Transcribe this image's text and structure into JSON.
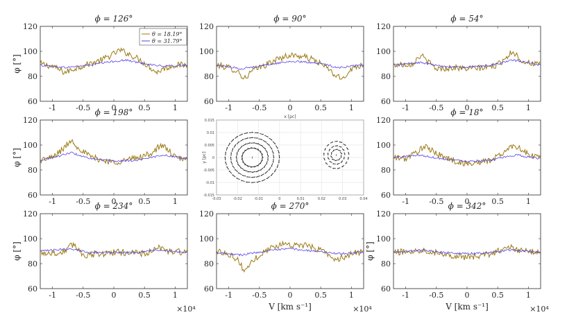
{
  "figure": {
    "xlabel": "V [km s⁻¹]",
    "ylabel": "φ [°]",
    "xscale_label": "×10⁴",
    "legend": [
      "θ = 18.19°",
      "θ = 31.79°"
    ],
    "colors": {
      "theta1": "#9a7a12",
      "theta2": "#5540e8"
    },
    "xticks": [
      "-1",
      "-0.5",
      "0",
      "0.5",
      "1"
    ],
    "yticks": [
      "60",
      "80",
      "100",
      "120"
    ]
  },
  "inset": {
    "xlabel": "x [pc]",
    "ylabel": "y [pc]",
    "xticks": [
      "-0.03",
      "-0.02",
      "-0.01",
      "0",
      "0.01",
      "0.02",
      "0.03",
      "0.04"
    ],
    "yticks": [
      "0.015",
      "0.01",
      "0.005",
      "0",
      "-0.005",
      "-0.01",
      "-0.015"
    ],
    "xlim": [
      -0.03,
      0.04
    ],
    "ylim": [
      -0.015,
      0.015
    ],
    "vortices": [
      {
        "cx": -0.013,
        "cy": 0.0,
        "rx": 0.0135,
        "ry": 0.0105
      },
      {
        "cx": 0.027,
        "cy": 0.001,
        "rx": 0.0065,
        "ry": 0.006
      }
    ]
  },
  "chart_data": [
    {
      "type": "line",
      "title": "ϕ = 126°",
      "xlim": [
        -12000,
        12000
      ],
      "ylim": [
        60,
        120
      ],
      "xlabel": "",
      "ylabel": "φ [°]",
      "series": [
        {
          "name": "θ = 18.19°",
          "knots_x": [
            -12000,
            -10000,
            -8000,
            -6000,
            -4000,
            -2000,
            0,
            1000,
            2000,
            4000,
            6000,
            7000,
            8000,
            10000,
            12000
          ],
          "knots_y": [
            90,
            88,
            83,
            87,
            90,
            93,
            98,
            101,
            99,
            94,
            87,
            83,
            86,
            89,
            89
          ],
          "noise": 2.5
        },
        {
          "name": "θ = 31.79°",
          "knots_x": [
            -12000,
            -8000,
            -4000,
            0,
            2000,
            4000,
            8000,
            12000
          ],
          "knots_y": [
            89,
            87,
            89,
            92,
            93,
            91,
            88,
            89
          ],
          "noise": 0.8
        }
      ]
    },
    {
      "type": "line",
      "title": "ϕ = 90°",
      "xlim": [
        -12000,
        12000
      ],
      "ylim": [
        60,
        120
      ],
      "xlabel": "",
      "ylabel": "",
      "series": [
        {
          "name": "θ = 18.19°",
          "knots_x": [
            -12000,
            -10000,
            -8500,
            -7500,
            -6000,
            -4000,
            -2000,
            0,
            2000,
            4000,
            6000,
            7500,
            8500,
            10000,
            12000
          ],
          "knots_y": [
            89,
            87,
            84,
            78,
            85,
            89,
            94,
            97,
            96,
            93,
            87,
            80,
            78,
            86,
            90
          ],
          "noise": 2.5
        },
        {
          "name": "θ = 31.79°",
          "knots_x": [
            -12000,
            -8000,
            -4000,
            0,
            4000,
            8000,
            12000
          ],
          "knots_y": [
            89,
            86,
            89,
            92,
            91,
            87,
            89
          ],
          "noise": 0.8
        }
      ]
    },
    {
      "type": "line",
      "title": "ϕ = 54°",
      "xlim": [
        -12000,
        12000
      ],
      "ylim": [
        60,
        120
      ],
      "xlabel": "",
      "ylabel": "",
      "series": [
        {
          "name": "θ = 18.19°",
          "knots_x": [
            -12000,
            -9000,
            -7500,
            -6500,
            -5000,
            -2000,
            0,
            3000,
            5000,
            6500,
            7500,
            9000,
            12000
          ],
          "knots_y": [
            89,
            90,
            97,
            92,
            86,
            87,
            86,
            87,
            89,
            96,
            100,
            92,
            89
          ],
          "noise": 2.5
        },
        {
          "name": "θ = 31.79°",
          "knots_x": [
            -12000,
            -7500,
            -4000,
            0,
            4000,
            7500,
            12000
          ],
          "knots_y": [
            89,
            91,
            88,
            87,
            89,
            93,
            89
          ],
          "noise": 0.8
        }
      ]
    },
    {
      "type": "line",
      "title": "ϕ = 198°",
      "xlim": [
        -12000,
        12000
      ],
      "ylim": [
        60,
        120
      ],
      "xlabel": "",
      "ylabel": "φ [°]",
      "series": [
        {
          "name": "θ = 18.19°",
          "knots_x": [
            -12000,
            -10000,
            -8000,
            -7000,
            -6000,
            -4000,
            -2000,
            0,
            2000,
            4000,
            6000,
            7500,
            8500,
            10000,
            12000
          ],
          "knots_y": [
            88,
            90,
            98,
            104,
            99,
            91,
            88,
            86,
            88,
            90,
            93,
            99,
            98,
            90,
            88
          ],
          "noise": 2.5
        },
        {
          "name": "θ = 31.79°",
          "knots_x": [
            -12000,
            -9000,
            -7000,
            -4000,
            0,
            4000,
            8000,
            12000
          ],
          "knots_y": [
            88,
            91,
            94,
            89,
            87,
            88,
            92,
            89
          ],
          "noise": 0.8
        }
      ]
    },
    {
      "type": "line",
      "title": "ϕ = 18°",
      "xlim": [
        -12000,
        12000
      ],
      "ylim": [
        60,
        120
      ],
      "xlabel": "",
      "ylabel": "",
      "series": [
        {
          "name": "θ = 18.19°",
          "knots_x": [
            -12000,
            -10000,
            -8000,
            -7000,
            -6000,
            -4000,
            -2000,
            0,
            2000,
            4000,
            6000,
            7500,
            8500,
            10000,
            12000
          ],
          "knots_y": [
            90,
            89,
            95,
            99,
            96,
            91,
            87,
            85,
            86,
            88,
            94,
            100,
            98,
            92,
            90
          ],
          "noise": 2.5
        },
        {
          "name": "θ = 31.79°",
          "knots_x": [
            -12000,
            -8000,
            -4000,
            0,
            4000,
            8000,
            12000
          ],
          "knots_y": [
            90,
            92,
            89,
            87,
            88,
            92,
            89
          ],
          "noise": 0.8
        }
      ]
    },
    {
      "type": "line",
      "title": "ϕ = 234°",
      "xlim": [
        -12000,
        12000
      ],
      "ylim": [
        60,
        120
      ],
      "xlabel": "",
      "ylabel": "φ [°]",
      "series": [
        {
          "name": "θ = 18.19°",
          "knots_x": [
            -12000,
            -9000,
            -7500,
            -6500,
            -5000,
            -2000,
            0,
            3000,
            5000,
            6500,
            7500,
            9000,
            12000
          ],
          "knots_y": [
            89,
            88,
            92,
            96,
            87,
            88,
            89,
            89,
            88,
            90,
            93,
            90,
            89
          ],
          "noise": 2.8
        },
        {
          "name": "θ = 31.79°",
          "knots_x": [
            -12000,
            -7000,
            -4000,
            0,
            4000,
            7000,
            12000
          ],
          "knots_y": [
            90,
            92,
            89,
            89,
            89,
            91,
            89
          ],
          "noise": 0.8
        }
      ]
    },
    {
      "type": "line",
      "title": "ϕ = 270°",
      "xlim": [
        -12000,
        12000
      ],
      "ylim": [
        60,
        120
      ],
      "xlabel": "V [km s⁻¹]",
      "ylabel": "",
      "series": [
        {
          "name": "θ = 18.19°",
          "knots_x": [
            -12000,
            -10000,
            -8500,
            -7500,
            -6500,
            -5000,
            -3000,
            -1000,
            1000,
            3000,
            5000,
            6500,
            7500,
            8500,
            10000,
            12000
          ],
          "knots_y": [
            90,
            88,
            83,
            74,
            80,
            87,
            93,
            96,
            95,
            94,
            91,
            87,
            82,
            85,
            88,
            90
          ],
          "noise": 2.5
        },
        {
          "name": "θ = 31.79°",
          "knots_x": [
            -12000,
            -8000,
            -4000,
            0,
            4000,
            8000,
            12000
          ],
          "knots_y": [
            89,
            87,
            90,
            92,
            90,
            88,
            89
          ],
          "noise": 0.8
        }
      ]
    },
    {
      "type": "line",
      "title": "ϕ = 342°",
      "xlim": [
        -12000,
        12000
      ],
      "ylim": [
        60,
        120
      ],
      "xlabel": "V [km s⁻¹]",
      "ylabel": "φ [°]",
      "series": [
        {
          "name": "θ = 18.19°",
          "knots_x": [
            -12000,
            -9000,
            -7000,
            -5000,
            -3000,
            0,
            2000,
            4000,
            6000,
            7000,
            9000,
            12000
          ],
          "knots_y": [
            89,
            90,
            91,
            89,
            87,
            85,
            86,
            88,
            92,
            93,
            90,
            89
          ],
          "noise": 2.5
        },
        {
          "name": "θ = 31.79°",
          "knots_x": [
            -12000,
            -7000,
            -4000,
            0,
            4000,
            7000,
            12000
          ],
          "knots_y": [
            89,
            91,
            89,
            88,
            89,
            91,
            89
          ],
          "noise": 0.8
        }
      ]
    }
  ]
}
